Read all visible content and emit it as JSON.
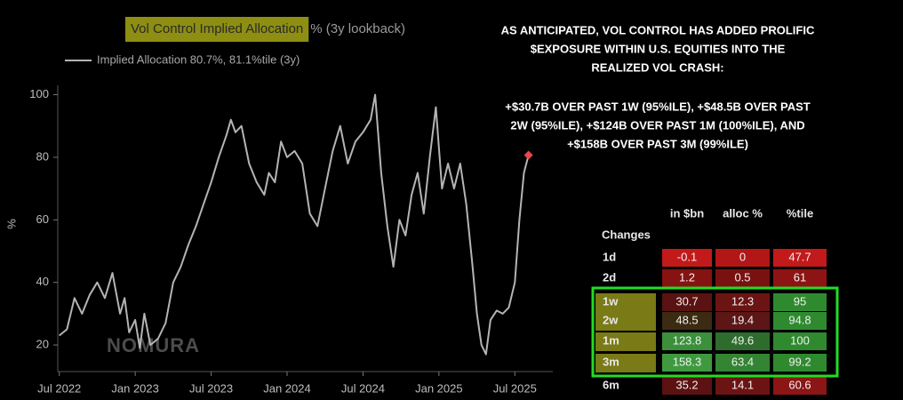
{
  "chart_data": {
    "type": "line",
    "title": {
      "highlighted": "Vol Control Implied Allocation",
      "rest": "% (3y lookback)"
    },
    "highlight_color": "#8e8e12",
    "y_label": "%",
    "watermark": "NOMURA",
    "x": [
      2022.5,
      2022.55,
      2022.6,
      2022.65,
      2022.7,
      2022.75,
      2022.8,
      2022.85,
      2022.9,
      2022.93,
      2022.96,
      2023.0,
      2023.03,
      2023.06,
      2023.1,
      2023.15,
      2023.2,
      2023.25,
      2023.3,
      2023.35,
      2023.4,
      2023.45,
      2023.5,
      2023.55,
      2023.6,
      2023.63,
      2023.66,
      2023.7,
      2023.75,
      2023.8,
      2023.85,
      2023.88,
      2023.92,
      2023.96,
      2024.0,
      2024.05,
      2024.1,
      2024.15,
      2024.2,
      2024.25,
      2024.3,
      2024.35,
      2024.4,
      2024.45,
      2024.5,
      2024.55,
      2024.58,
      2024.62,
      2024.66,
      2024.7,
      2024.74,
      2024.78,
      2024.82,
      2024.86,
      2024.9,
      2024.94,
      2024.98,
      2025.02,
      2025.06,
      2025.1,
      2025.14,
      2025.18,
      2025.22,
      2025.25,
      2025.28,
      2025.31,
      2025.34,
      2025.38,
      2025.42,
      2025.46,
      2025.5,
      2025.53,
      2025.56,
      2025.59
    ],
    "series": [
      {
        "name": "Implied Allocation 80.7%, 81.1%tile (3y)",
        "color": "#b4b4b4",
        "marker_color": "#e8484a",
        "values": [
          23,
          25,
          35,
          30,
          36,
          40,
          35,
          43,
          30,
          35,
          24,
          28,
          19,
          30,
          20,
          22,
          27,
          40,
          45,
          52,
          58,
          65,
          72,
          80,
          87,
          92,
          88,
          90,
          78,
          72,
          68,
          75,
          72,
          85,
          80,
          82,
          78,
          62,
          58,
          70,
          82,
          90,
          78,
          85,
          88,
          92,
          100,
          75,
          58,
          45,
          60,
          55,
          68,
          75,
          62,
          80,
          96,
          70,
          78,
          70,
          78,
          65,
          46,
          30,
          20,
          17,
          28,
          31,
          30,
          32,
          40,
          60,
          75,
          80.7
        ]
      }
    ],
    "xlim": [
      2022.49,
      2025.75
    ],
    "xticks": [
      {
        "value": 2022.5,
        "label": "Jul 2022"
      },
      {
        "value": 2023.0,
        "label": "Jan 2023"
      },
      {
        "value": 2023.5,
        "label": "Jul 2023"
      },
      {
        "value": 2024.0,
        "label": "Jan 2024"
      },
      {
        "value": 2024.5,
        "label": "Jul 2024"
      },
      {
        "value": 2025.0,
        "label": "Jan 2025"
      },
      {
        "value": 2025.5,
        "label": "Jul 2025"
      }
    ],
    "ylim": [
      11.5,
      103
    ],
    "yticks": [
      20,
      40,
      60,
      80,
      100
    ]
  },
  "annotation": {
    "heading": [
      "AS ANTICIPATED, VOL CONTROL HAS ADDED PROLIFIC",
      "$EXPOSURE WITHIN U.S. EQUITIES INTO THE",
      "REALIZED VOL CRASH:"
    ],
    "body": [
      "+$30.7B OVER PAST 1W (95%ILE), +$48.5B OVER PAST",
      "2W (95%ILE), +$124B OVER PAST 1M (100%ILE), AND",
      "+$158B OVER PAST 3M (99%ILE)"
    ]
  },
  "table": {
    "corner": "Changes",
    "columns": [
      "in $bn",
      "alloc %",
      "%tile"
    ],
    "rows": [
      {
        "label": "1d",
        "cells": [
          -0.1,
          0,
          47.7
        ],
        "colors": [
          "#c21a1a",
          "#b31616",
          "#c21a1a"
        ]
      },
      {
        "label": "2d",
        "cells": [
          1.2,
          0.5,
          61
        ],
        "colors": [
          "#861212",
          "#7a1111",
          "#8e1414"
        ]
      },
      {
        "label": "1w",
        "cells": [
          30.7,
          12.3,
          95
        ],
        "colors": [
          "#5a1212",
          "#6b1414",
          "#2f8a2f"
        ]
      },
      {
        "label": "2w",
        "cells": [
          48.5,
          19.4,
          94.8
        ],
        "colors": [
          "#3c2a12",
          "#5c1616",
          "#2f8a2f"
        ]
      },
      {
        "label": "1m",
        "cells": [
          123.8,
          49.6,
          100
        ],
        "colors": [
          "#3c903c",
          "#2e6c2e",
          "#2f8a2f"
        ]
      },
      {
        "label": "3m",
        "cells": [
          158.3,
          63.4,
          99.2
        ],
        "colors": [
          "#3f9a3f",
          "#338433",
          "#2f8a2f"
        ]
      },
      {
        "label": "6m",
        "cells": [
          35.2,
          14.1,
          60.6
        ],
        "colors": [
          "#5c1212",
          "#6c1313",
          "#8c1515"
        ]
      }
    ],
    "highlight_rows": [
      2,
      3,
      4,
      5
    ],
    "highlight_color": "#22dd22",
    "row_label_highlight": "#7a7a16"
  }
}
